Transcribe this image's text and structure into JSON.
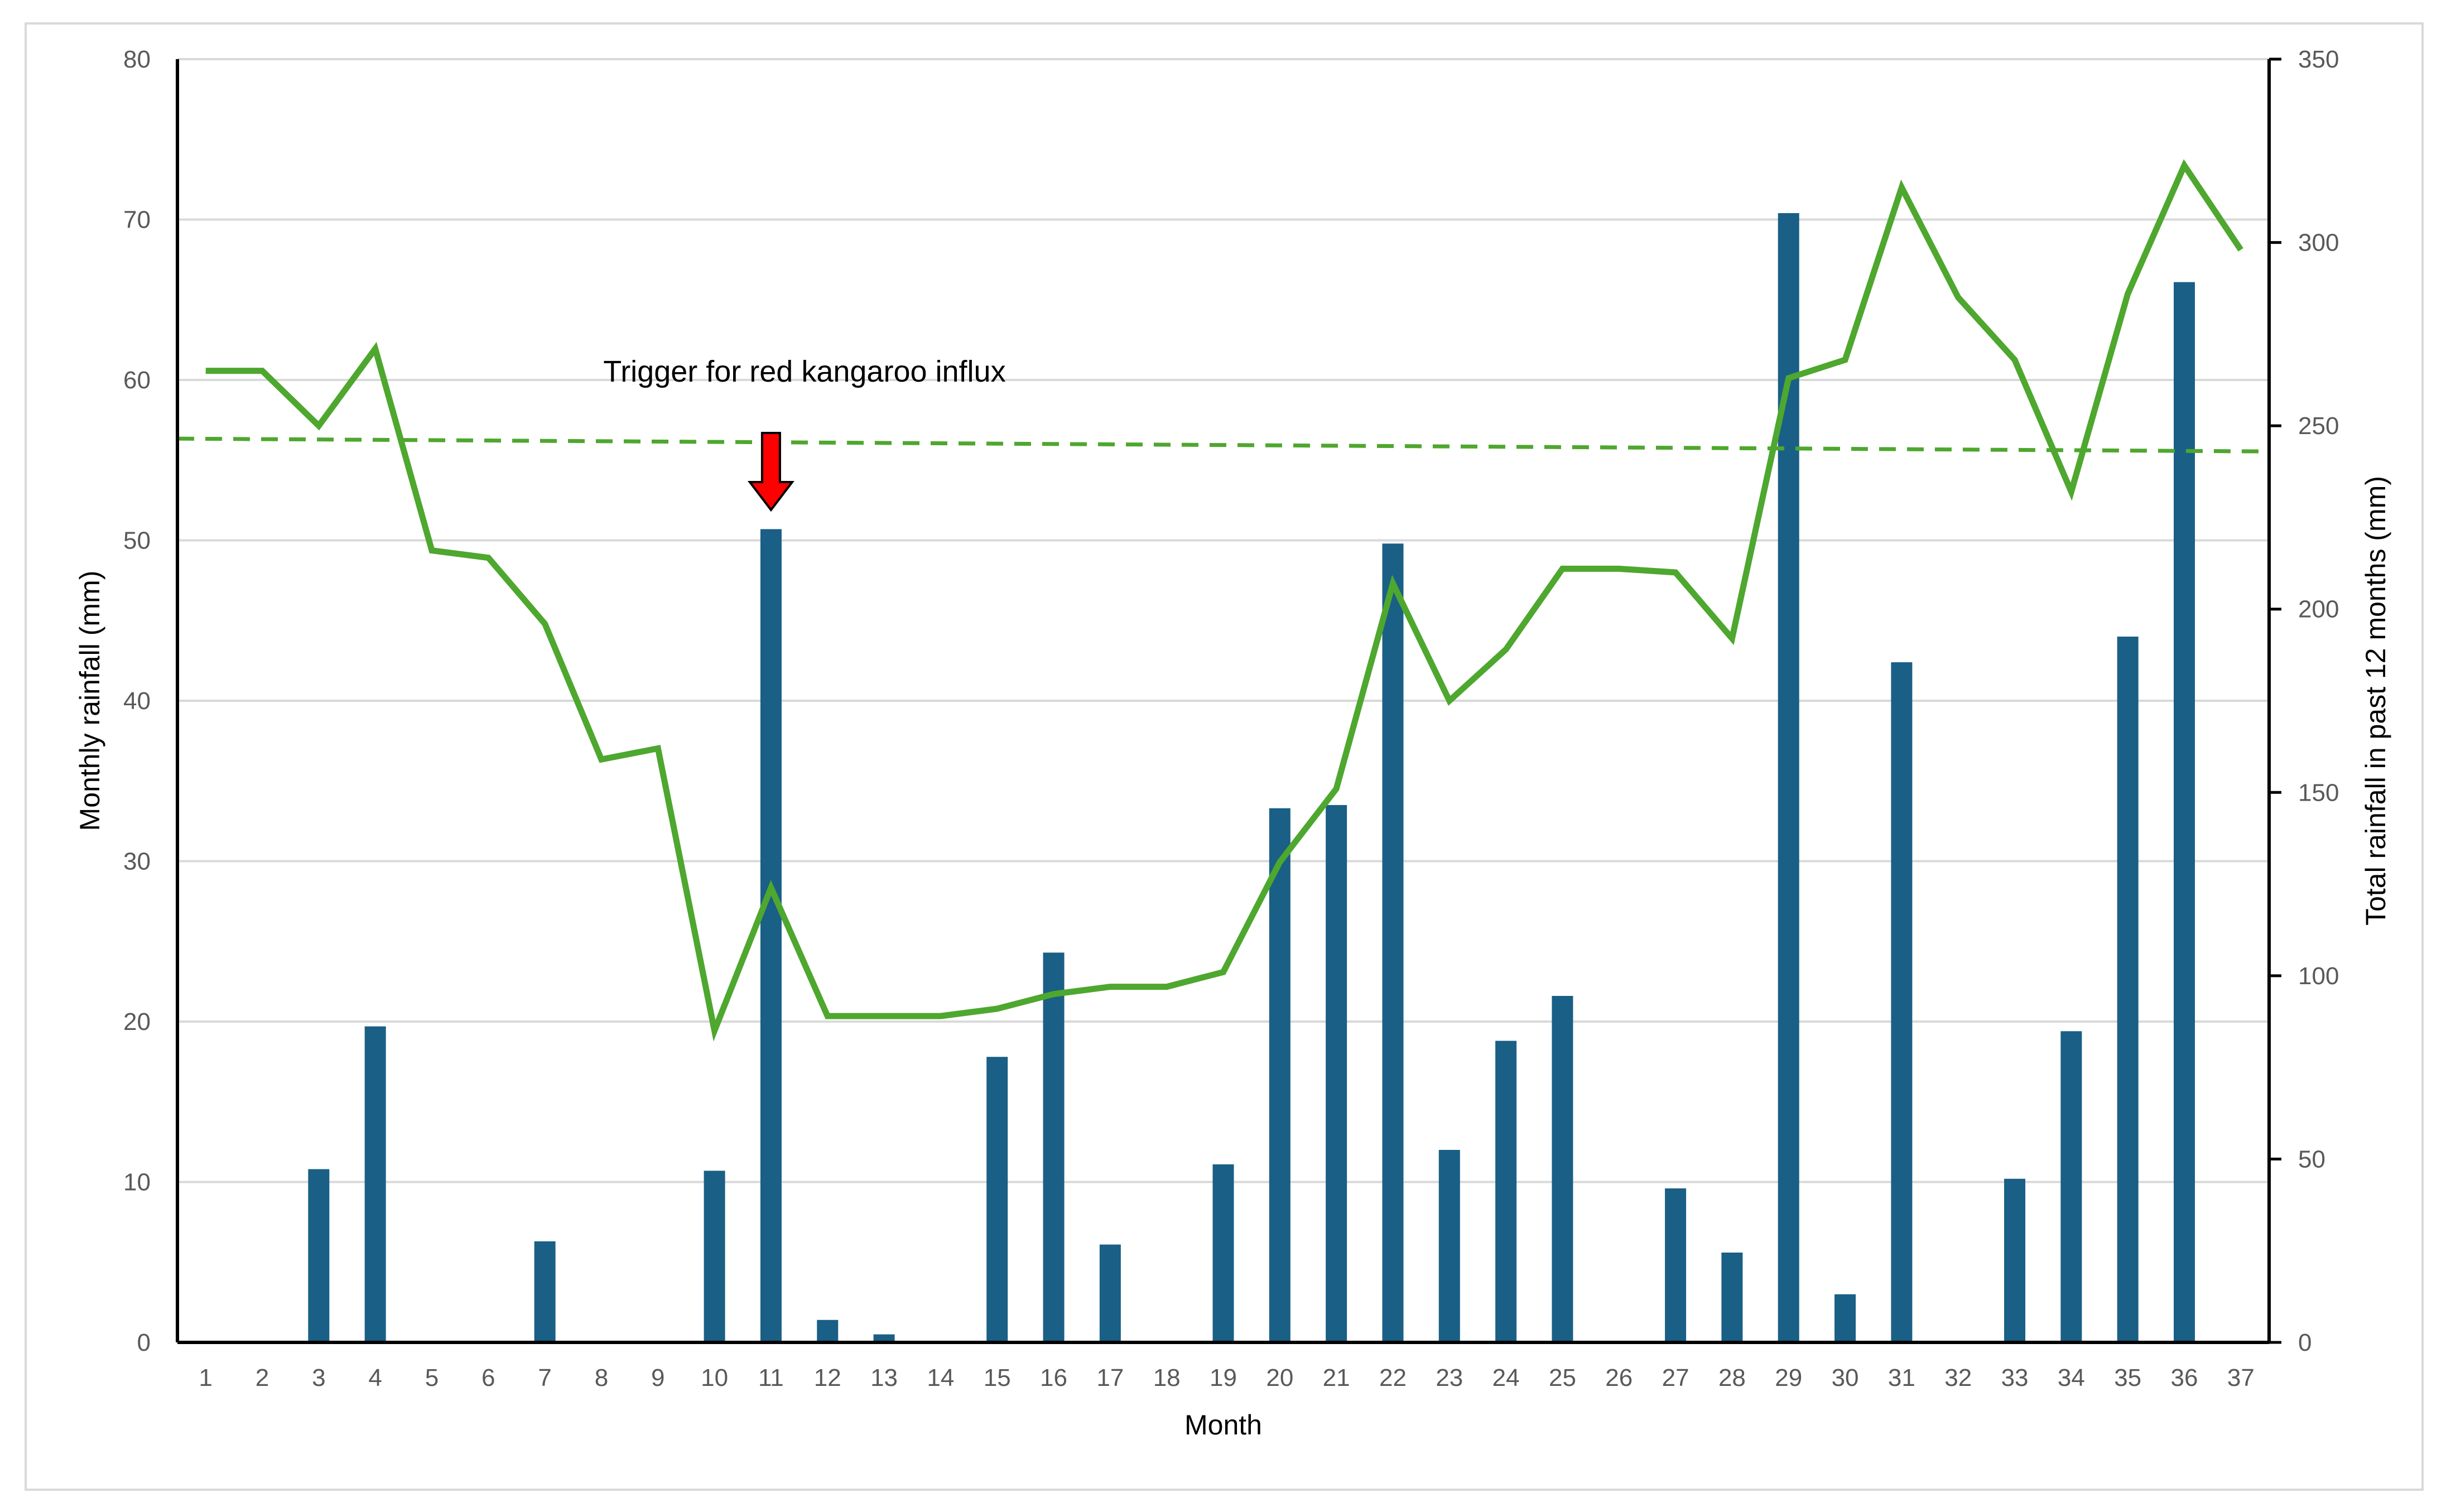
{
  "chart_data": {
    "type": "bar",
    "xlabel": "Month",
    "ylabel": "Monthly rainfall (mm)",
    "y2label": "Total rainfall in past 12 months (mm)",
    "categories": [
      "1",
      "2",
      "3",
      "4",
      "5",
      "6",
      "7",
      "8",
      "9",
      "10",
      "11",
      "12",
      "13",
      "14",
      "15",
      "16",
      "17",
      "18",
      "19",
      "20",
      "21",
      "22",
      "23",
      "24",
      "25",
      "26",
      "27",
      "28",
      "29",
      "30",
      "31",
      "32",
      "33",
      "34",
      "35",
      "36",
      "37"
    ],
    "ylim": [
      0,
      80
    ],
    "y_ticks": [
      "0",
      "10",
      "20",
      "30",
      "40",
      "50",
      "60",
      "70",
      "80"
    ],
    "y2lim": [
      0,
      350
    ],
    "y2_ticks": [
      "0",
      "50",
      "100",
      "150",
      "200",
      "250",
      "300",
      "350"
    ],
    "grid": true,
    "legend": "none",
    "series": [
      {
        "type": "bar",
        "axis": "left",
        "color": "#1a5f85",
        "values": [
          0,
          0,
          10.8,
          19.7,
          0,
          0,
          6.3,
          0,
          0,
          10.7,
          50.7,
          1.4,
          0.5,
          0,
          17.8,
          24.3,
          6.1,
          0,
          11.1,
          33.3,
          33.5,
          49.8,
          12.0,
          18.8,
          21.6,
          0,
          9.6,
          5.6,
          70.4,
          3.0,
          42.4,
          0,
          10.2,
          19.4,
          44.0,
          66.1,
          0
        ]
      },
      {
        "type": "line",
        "axis": "right",
        "color": "#4ea72e",
        "values": [
          265,
          265,
          250,
          271,
          216,
          214,
          196,
          159,
          162,
          85,
          124,
          89,
          89,
          89,
          91,
          95,
          97,
          97,
          101,
          131,
          151,
          207,
          175,
          189,
          211,
          211,
          210,
          192,
          263,
          268,
          315,
          285,
          268,
          232,
          286,
          321,
          298
        ]
      },
      {
        "type": "threshold",
        "axis": "right",
        "color": "#4ea72e",
        "style": "dashed",
        "start": 246.5,
        "end": 243
      }
    ],
    "annotations": [
      {
        "text": "Trigger for red kangaroo influx",
        "month": 11,
        "arrow_color": "#ff0000"
      }
    ]
  }
}
